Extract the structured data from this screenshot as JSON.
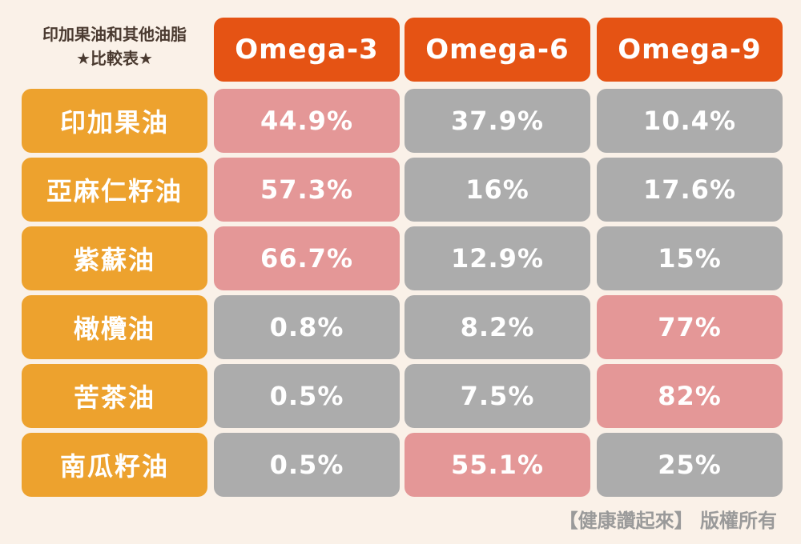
{
  "corner": {
    "line1": "印加果油和其他油脂",
    "line2": "★比較表★"
  },
  "chart_data": {
    "type": "table",
    "columns": [
      "Omega-3",
      "Omega-6",
      "Omega-9"
    ],
    "rows": [
      {
        "label": "印加果油",
        "values": [
          "44.9%",
          "37.9%",
          "10.4%"
        ],
        "highlight": [
          true,
          false,
          false
        ]
      },
      {
        "label": "亞麻仁籽油",
        "values": [
          "57.3%",
          "16%",
          "17.6%"
        ],
        "highlight": [
          true,
          false,
          false
        ]
      },
      {
        "label": "紫蘇油",
        "values": [
          "66.7%",
          "12.9%",
          "15%"
        ],
        "highlight": [
          true,
          false,
          false
        ]
      },
      {
        "label": "橄欖油",
        "values": [
          "0.8%",
          "8.2%",
          "77%"
        ],
        "highlight": [
          false,
          false,
          true
        ]
      },
      {
        "label": "苦茶油",
        "values": [
          "0.5%",
          "7.5%",
          "82%"
        ],
        "highlight": [
          false,
          false,
          true
        ]
      },
      {
        "label": "南瓜籽油",
        "values": [
          "0.5%",
          "55.1%",
          "25%"
        ],
        "highlight": [
          false,
          true,
          false
        ]
      }
    ]
  },
  "colors": {
    "background": "#faf1e8",
    "column_header": "#e55314",
    "row_header": "#eda22e",
    "highlight_cell": "#e49797",
    "normal_cell": "#acacac"
  },
  "footer": {
    "copyright": "【健康讚起來】 版權所有"
  }
}
